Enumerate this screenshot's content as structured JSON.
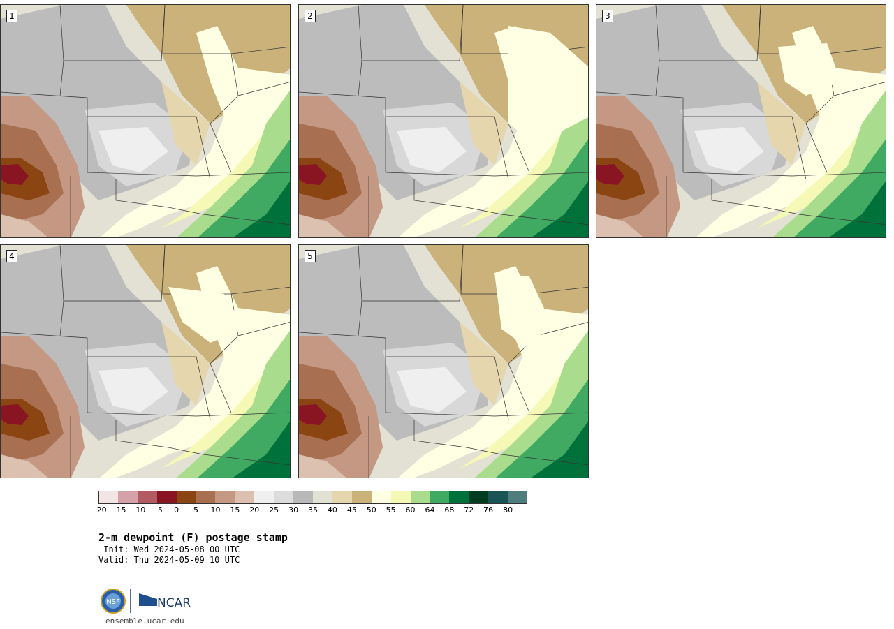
{
  "panels": [
    {
      "label": "1"
    },
    {
      "label": "2"
    },
    {
      "label": "3"
    },
    {
      "label": "4"
    },
    {
      "label": "5"
    }
  ],
  "legend": {
    "ticks": [
      "-20",
      "-15",
      "-10",
      "-5",
      "0",
      "5",
      "10",
      "15",
      "20",
      "25",
      "30",
      "35",
      "40",
      "45",
      "50",
      "55",
      "60",
      "64",
      "68",
      "72",
      "76",
      "80"
    ],
    "colors": [
      "#f3e4e6",
      "#d4a2a8",
      "#b35a62",
      "#8a1522",
      "#8b4513",
      "#a87050",
      "#c49882",
      "#dcc0b0",
      "#f0f0f0",
      "#dcdcdc",
      "#b9b9b9",
      "#e1e1d4",
      "#e6d6ae",
      "#cbb27b",
      "#ffffe4",
      "#f6f9b6",
      "#a9dd8d",
      "#40a962",
      "#00713a",
      "#003d20",
      "#1a5454",
      "#4f7c7c"
    ]
  },
  "title": "2-m dewpoint (F) postage stamp",
  "init": " Init: Wed 2024-05-08 00 UTC",
  "valid": "Valid: Thu 2024-05-09 10 UTC",
  "logos": {
    "nsf": "NSF",
    "ncar": "NCAR"
  },
  "site": "ensemble.ucar.edu"
}
